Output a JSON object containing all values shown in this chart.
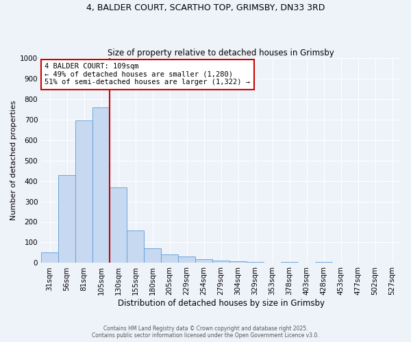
{
  "title1": "4, BALDER COURT, SCARTHO TOP, GRIMSBY, DN33 3RD",
  "title2": "Size of property relative to detached houses in Grimsby",
  "xlabel": "Distribution of detached houses by size in Grimsby",
  "ylabel": "Number of detached properties",
  "bar_labels": [
    "31sqm",
    "56sqm",
    "81sqm",
    "105sqm",
    "130sqm",
    "155sqm",
    "180sqm",
    "205sqm",
    "229sqm",
    "254sqm",
    "279sqm",
    "304sqm",
    "329sqm",
    "353sqm",
    "378sqm",
    "403sqm",
    "428sqm",
    "453sqm",
    "477sqm",
    "502sqm",
    "527sqm"
  ],
  "bar_values": [
    50,
    430,
    695,
    760,
    370,
    157,
    72,
    40,
    30,
    17,
    13,
    8,
    5,
    0,
    5,
    0,
    5,
    0,
    0,
    0,
    0
  ],
  "bar_color": "#c6d9f0",
  "bar_edge_color": "#5b9bd5",
  "property_label": "4 BALDER COURT: 109sqm",
  "annotation_line1": "← 49% of detached houses are smaller (1,280)",
  "annotation_line2": "51% of semi-detached houses are larger (1,322) →",
  "vline_color": "#cc0000",
  "vline_x_index": 3.5,
  "annotation_box_color": "#ffffff",
  "annotation_box_edge": "#cc0000",
  "ylim": [
    0,
    1000
  ],
  "yticks": [
    0,
    100,
    200,
    300,
    400,
    500,
    600,
    700,
    800,
    900,
    1000
  ],
  "footnote1": "Contains HM Land Registry data © Crown copyright and database right 2025.",
  "footnote2": "Contains public sector information licensed under the Open Government Licence v3.0.",
  "bg_color": "#eef2f9",
  "plot_bg_color": "#eef2f9",
  "grid_color": "#ffffff"
}
